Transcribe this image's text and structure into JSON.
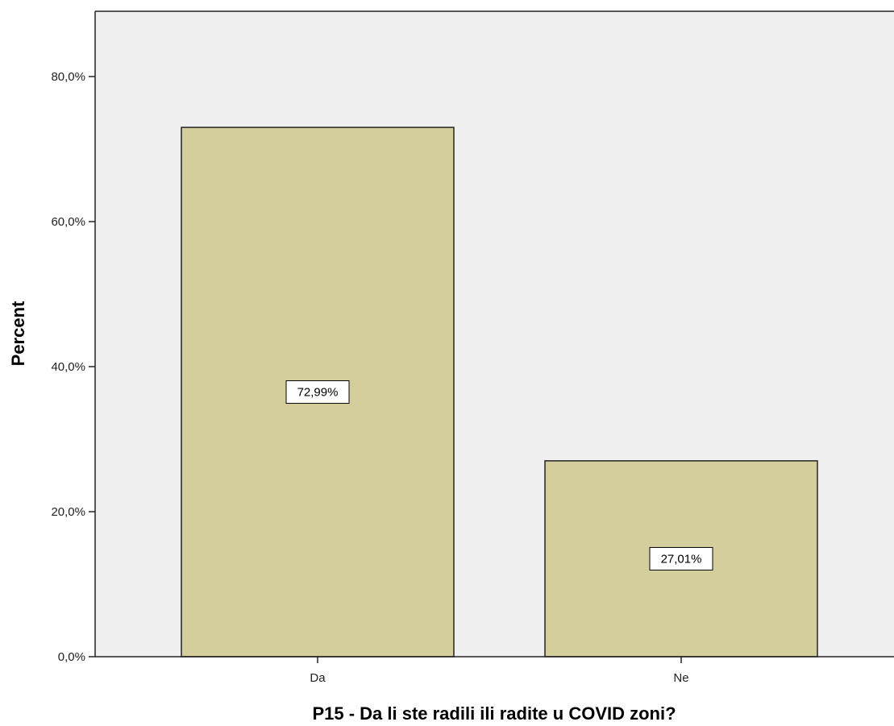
{
  "chart_data": {
    "type": "bar",
    "categories": [
      "Da",
      "Ne"
    ],
    "values": [
      72.99,
      27.01
    ],
    "data_labels": [
      "72,99%",
      "27,01%"
    ],
    "title": "",
    "xlabel": "P15 - Da li ste radili ili radite u COVID zoni?",
    "ylabel": "Percent",
    "ylim": [
      0,
      89
    ],
    "y_ticks": [
      0,
      20,
      40,
      60,
      80
    ],
    "y_tick_labels": [
      "0,0%",
      "20,0%",
      "40,0%",
      "60,0%",
      "80,0%"
    ],
    "grid": false,
    "legend": "none"
  },
  "colors": {
    "plot_background": "#f0f0f0",
    "bar_fill": "#d3ce9c",
    "bar_stroke": "#222222",
    "label_background": "#ffffff"
  }
}
